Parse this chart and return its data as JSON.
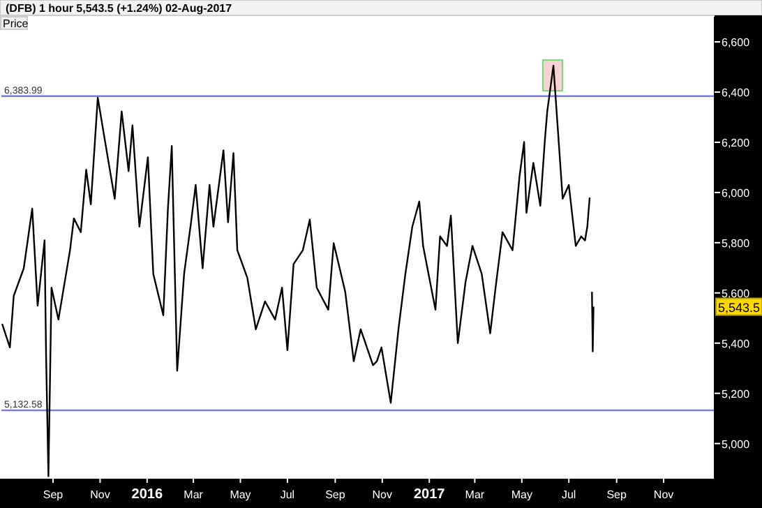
{
  "chart_data": {
    "type": "line",
    "title": "(DFB)   1 hour   5,543.5 (+1.24%)   02-Aug-2017",
    "ylabel": "Price",
    "x": [
      "2015-06-27",
      "2015-07-07",
      "2015-07-12",
      "2015-07-25",
      "2015-08-05",
      "2015-08-12",
      "2015-08-21",
      "2015-08-23",
      "2015-08-26",
      "2015-08-30",
      "2015-09-08",
      "2015-09-23",
      "2015-09-28",
      "2015-10-07",
      "2015-10-14",
      "2015-10-20",
      "2015-10-29",
      "2015-11-07",
      "2015-11-20",
      "2015-11-29",
      "2015-12-08",
      "2015-12-13",
      "2015-12-22",
      "2016-01-02",
      "2016-01-09",
      "2016-01-22",
      "2016-01-28",
      "2016-02-02",
      "2016-02-09",
      "2016-02-18",
      "2016-02-27",
      "2016-03-04",
      "2016-03-13",
      "2016-03-22",
      "2016-03-27",
      "2016-04-09",
      "2016-04-15",
      "2016-04-22",
      "2016-04-27",
      "2016-05-10",
      "2016-05-21",
      "2016-06-02",
      "2016-06-15",
      "2016-06-24",
      "2016-07-01",
      "2016-07-09",
      "2016-07-21",
      "2016-07-30",
      "2016-08-08",
      "2016-08-23",
      "2016-08-30",
      "2016-09-14",
      "2016-09-25",
      "2016-10-04",
      "2016-10-20",
      "2016-10-25",
      "2016-10-31",
      "2016-11-12",
      "2016-11-22",
      "2016-12-01",
      "2016-12-10",
      "2016-12-19",
      "2016-12-24",
      "2017-01-09",
      "2017-01-15",
      "2017-01-24",
      "2017-01-29",
      "2017-02-07",
      "2017-02-17",
      "2017-02-26",
      "2017-03-10",
      "2017-03-21",
      "2017-03-28",
      "2017-04-06",
      "2017-04-19",
      "2017-04-28",
      "2017-05-04",
      "2017-05-07",
      "2017-05-16",
      "2017-05-25",
      "2017-05-31",
      "2017-06-03",
      "2017-06-11",
      "2017-06-18",
      "2017-06-23",
      "2017-07-01",
      "2017-07-10",
      "2017-07-17",
      "2017-07-22",
      "2017-07-25",
      "2017-07-28",
      "2017-07-29",
      "2017-07-31",
      "2017-08-01",
      "2017-08-02"
    ],
    "series": [
      {
        "color": "#000000",
        "values": [
          5477,
          5383,
          5588,
          5698,
          5936,
          5549,
          5809,
          5345,
          4870,
          5621,
          5494,
          5770,
          5897,
          5842,
          6091,
          5953,
          6378,
          6212,
          5975,
          6323,
          6085,
          6267,
          5864,
          6140,
          5676,
          5511,
          5936,
          6185,
          5290,
          5676,
          5881,
          6030,
          5698,
          6030,
          5864,
          6168,
          5881,
          6157,
          5770,
          5660,
          5455,
          5566,
          5494,
          5621,
          5372,
          5715,
          5770,
          5892,
          5621,
          5533,
          5798,
          5604,
          5328,
          5455,
          5312,
          5328,
          5383,
          5162,
          5455,
          5676,
          5864,
          5964,
          5787,
          5533,
          5825,
          5787,
          5908,
          5400,
          5643,
          5787,
          5676,
          5439,
          5621,
          5842,
          5770,
          6063,
          6201,
          5919,
          6118,
          5947,
          6212,
          6323,
          6505,
          6196,
          5975,
          6030,
          5787,
          5825,
          5809,
          5864,
          5980,
          null,
          5604,
          5367,
          5545
        ]
      }
    ],
    "xlim": [
      "2015-06-26",
      "2018-01-06"
    ],
    "xticks": [
      {
        "value": "2015-09-01",
        "label": "Sep"
      },
      {
        "value": "2015-11-01",
        "label": "Nov"
      },
      {
        "value": "2016-01-01",
        "label": "2016"
      },
      {
        "value": "2016-03-01",
        "label": "Mar"
      },
      {
        "value": "2016-05-01",
        "label": "May"
      },
      {
        "value": "2016-07-01",
        "label": "Jul"
      },
      {
        "value": "2016-09-01",
        "label": "Sep"
      },
      {
        "value": "2016-11-01",
        "label": "Nov"
      },
      {
        "value": "2017-01-01",
        "label": "2017"
      },
      {
        "value": "2017-03-01",
        "label": "Mar"
      },
      {
        "value": "2017-05-01",
        "label": "May"
      },
      {
        "value": "2017-07-01",
        "label": "Jul"
      },
      {
        "value": "2017-09-01",
        "label": "Sep"
      },
      {
        "value": "2017-11-01",
        "label": "Nov"
      }
    ],
    "ylim": [
      4860,
      6700
    ],
    "yticks": [
      {
        "value": 5000,
        "label": "5,000"
      },
      {
        "value": 5200,
        "label": "5,200"
      },
      {
        "value": 5400,
        "label": "5,400"
      },
      {
        "value": 5600,
        "label": "5,600"
      },
      {
        "value": 5800,
        "label": "5,800"
      },
      {
        "value": 6000,
        "label": "6,000"
      },
      {
        "value": 6200,
        "label": "6,200"
      },
      {
        "value": 6400,
        "label": "6,400"
      },
      {
        "value": 6600,
        "label": "6,600"
      }
    ],
    "ref_lines": [
      {
        "axis": "y",
        "value": 6383.99,
        "label": "6,383.99",
        "color": "#7b7bdf"
      },
      {
        "axis": "y",
        "value": 5132.58,
        "label": "5,132.58",
        "color": "#7b7bdf"
      }
    ],
    "annotations": [
      "5,543.5"
    ],
    "grid": false
  }
}
